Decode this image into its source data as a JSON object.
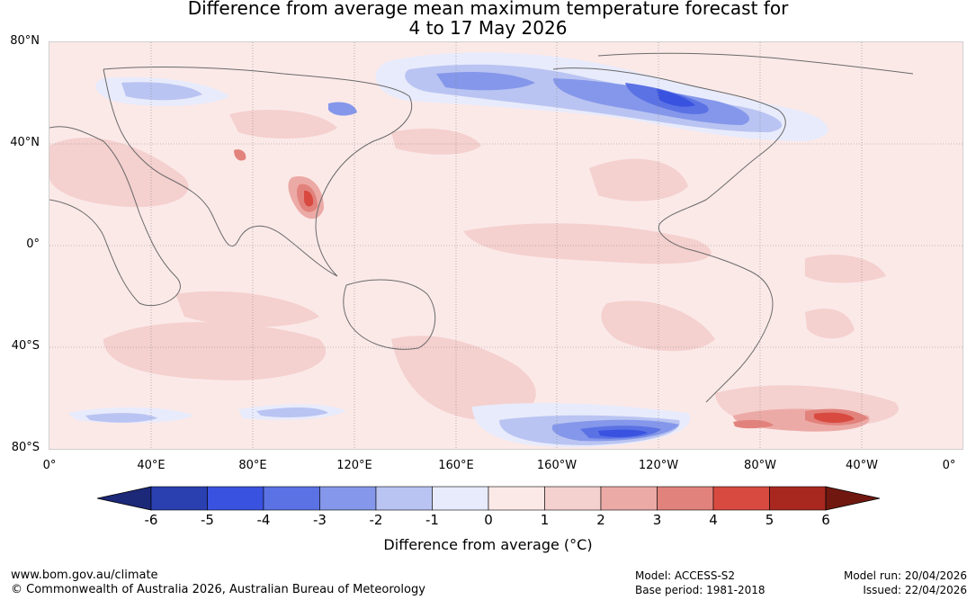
{
  "title": {
    "line1": "Difference from average mean maximum temperature forecast for",
    "line2": "4 to 17 May 2026"
  },
  "map": {
    "lat_labels": [
      "80°N",
      "40°N",
      "0°",
      "40°S",
      "80°S"
    ],
    "lon_labels": [
      "0°",
      "40°E",
      "80°E",
      "120°E",
      "160°E",
      "160°W",
      "120°W",
      "80°W",
      "40°W",
      "0°"
    ]
  },
  "colorbar": {
    "ticks": [
      "-6",
      "-5",
      "-4",
      "-3",
      "-2",
      "-1",
      "0",
      "1",
      "2",
      "3",
      "4",
      "5",
      "6"
    ],
    "colors": [
      "#1c2878",
      "#2a3fb0",
      "#3a52e0",
      "#5a72e4",
      "#8497ea",
      "#bac4f2",
      "#e8ebfb",
      "#fbe9e8",
      "#f4d0ce",
      "#ecaaa6",
      "#e2827c",
      "#d84a40",
      "#a82820",
      "#701810"
    ],
    "label": "Difference from average (°C)"
  },
  "footer": {
    "website": "www.bom.gov.au/climate",
    "copyright": "© Commonwealth of Australia 2026, Australian Bureau of Meteorology",
    "model": "Model: ACCESS-S2",
    "base_period": "Base period: 1981-2018",
    "model_run": "Model run: 20/04/2026",
    "issued": "Issued: 22/04/2026"
  }
}
